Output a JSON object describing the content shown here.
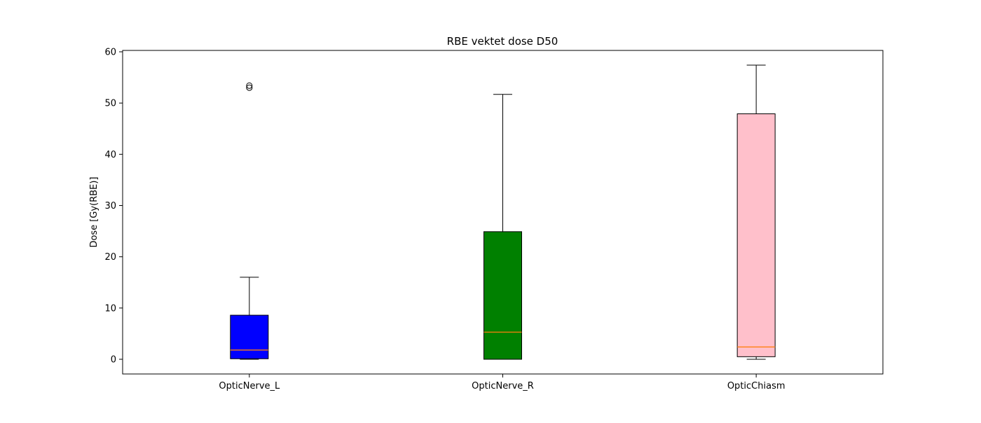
{
  "chart_data": {
    "type": "box",
    "title": "RBE vektet dose D50",
    "xlabel": "",
    "ylabel": "Dose [Gy(RBE)]",
    "ylim": [
      -2.87,
      60.27
    ],
    "yticks": [
      0,
      10,
      20,
      30,
      40,
      50,
      60
    ],
    "grid": false,
    "median_color": "#ff7f0e",
    "boxes": [
      {
        "category": "OpticNerve_L",
        "fill": "#0000ff",
        "whisker_low": 0.0,
        "q1": 0.1,
        "median": 1.8,
        "q3": 8.6,
        "whisker_high": 16.0,
        "outliers": [
          53.0,
          53.4
        ]
      },
      {
        "category": "OpticNerve_R",
        "fill": "#008000",
        "whisker_low": 0.0,
        "q1": 0.0,
        "median": 5.3,
        "q3": 24.9,
        "whisker_high": 51.7,
        "outliers": []
      },
      {
        "category": "OpticChiasm",
        "fill": "#ffc0cb",
        "whisker_low": 0.0,
        "q1": 0.5,
        "median": 2.4,
        "q3": 47.9,
        "whisker_high": 57.4,
        "outliers": []
      }
    ]
  }
}
